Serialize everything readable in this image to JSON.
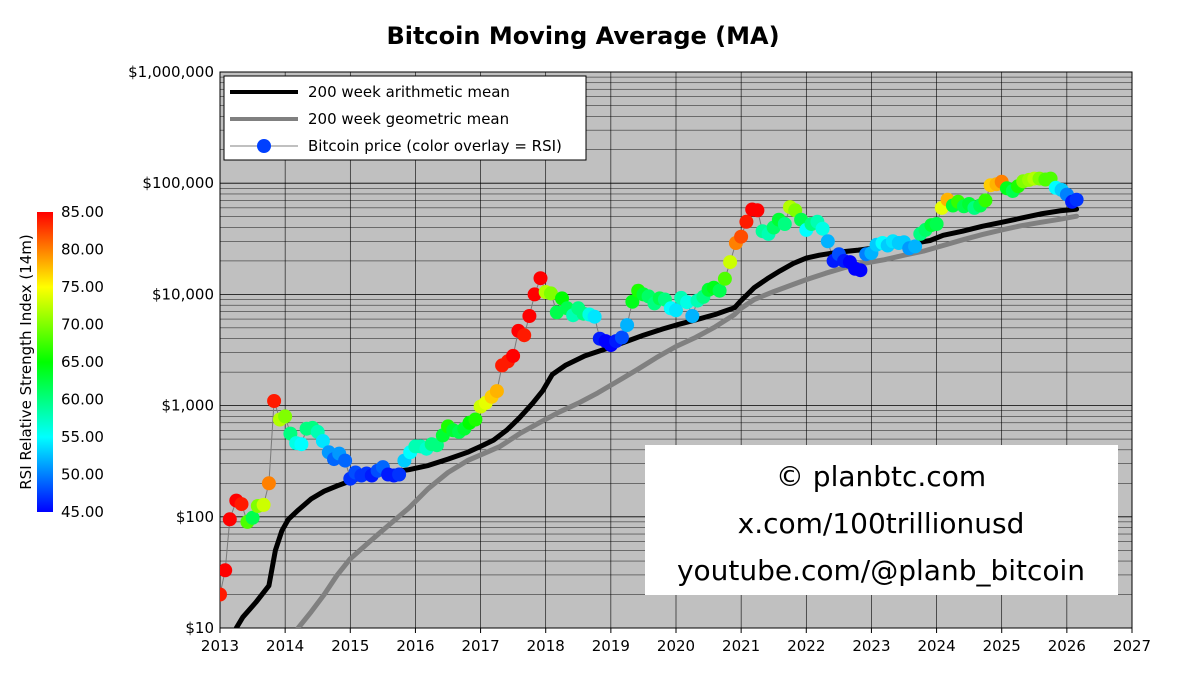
{
  "chart_data": {
    "type": "line",
    "title": "Bitcoin Moving Average (MA)",
    "xlabel": "",
    "ylabel": "",
    "y_scale": "log",
    "xlim": [
      2013,
      2027
    ],
    "ylim": [
      10,
      1000000
    ],
    "grid": true,
    "legend_position": "top-left",
    "x_ticks": [
      "2013",
      "2014",
      "2015",
      "2016",
      "2017",
      "2018",
      "2019",
      "2020",
      "2021",
      "2022",
      "2023",
      "2024",
      "2025",
      "2026",
      "2027"
    ],
    "y_ticks": [
      {
        "value": 10,
        "label": "$10"
      },
      {
        "value": 100,
        "label": "$100"
      },
      {
        "value": 1000,
        "label": "$1,000"
      },
      {
        "value": 10000,
        "label": "$10,000"
      },
      {
        "value": 100000,
        "label": "$100,000"
      },
      {
        "value": 1000000,
        "label": "$1,000,000"
      }
    ],
    "colors": {
      "plot_background": "#c0c0c0",
      "arith_line": "#000000",
      "geo_line": "#808080"
    },
    "series": [
      {
        "name": "200 week arithmetic mean",
        "x": [
          2013.25,
          2013.35,
          2013.55,
          2013.75,
          2013.85,
          2013.95,
          2014.05,
          2014.2,
          2014.4,
          2014.6,
          2014.8,
          2015.0,
          2015.3,
          2015.6,
          2015.9,
          2016.2,
          2016.5,
          2016.8,
          2017.0,
          2017.2,
          2017.4,
          2017.6,
          2017.8,
          2017.95,
          2018.1,
          2018.3,
          2018.6,
          2018.9,
          2019.2,
          2019.5,
          2019.8,
          2020.0,
          2020.3,
          2020.6,
          2020.9,
          2021.0,
          2021.2,
          2021.4,
          2021.6,
          2021.8,
          2022.0,
          2022.2,
          2022.5,
          2022.8,
          2023.0,
          2023.3,
          2023.6,
          2023.9,
          2024.1,
          2024.4,
          2024.7,
          2025.0,
          2025.3,
          2025.6,
          2025.9,
          2026.1,
          2026.15
        ],
        "y": [
          10,
          12.5,
          17,
          24,
          50,
          75,
          95,
          115,
          145,
          170,
          190,
          210,
          235,
          250,
          265,
          290,
          330,
          380,
          430,
          490,
          600,
          780,
          1050,
          1350,
          1900,
          2300,
          2800,
          3200,
          3700,
          4300,
          4900,
          5300,
          5900,
          6600,
          7600,
          8800,
          11500,
          13800,
          16300,
          19000,
          21200,
          22500,
          24000,
          25000,
          26000,
          27000,
          28500,
          30500,
          34000,
          37000,
          41000,
          44500,
          48500,
          53000,
          56500,
          58000,
          58500
        ],
        "color": "#000000"
      },
      {
        "name": "200 week geometric mean",
        "x": [
          2014.2,
          2014.4,
          2014.6,
          2014.8,
          2015.0,
          2015.3,
          2015.6,
          2015.9,
          2016.2,
          2016.5,
          2016.8,
          2017.0,
          2017.3,
          2017.6,
          2017.9,
          2018.2,
          2018.5,
          2018.8,
          2019.1,
          2019.4,
          2019.7,
          2020.0,
          2020.3,
          2020.6,
          2020.9,
          2021.0,
          2021.2,
          2021.5,
          2021.8,
          2022.0,
          2022.3,
          2022.6,
          2022.9,
          2023.2,
          2023.5,
          2023.8,
          2024.1,
          2024.4,
          2024.7,
          2025.0,
          2025.3,
          2025.6,
          2025.9,
          2026.15
        ],
        "y": [
          10,
          14,
          20,
          30,
          42,
          60,
          85,
          120,
          180,
          250,
          320,
          360,
          430,
          560,
          700,
          870,
          1050,
          1300,
          1650,
          2100,
          2700,
          3400,
          4100,
          5100,
          6600,
          7500,
          9000,
          10600,
          12300,
          13600,
          15500,
          17500,
          19100,
          20500,
          22500,
          24500,
          27500,
          31000,
          34500,
          38000,
          41500,
          44500,
          47500,
          50500
        ],
        "color": "#808080"
      },
      {
        "name": "Bitcoin price (color overlay = RSI)",
        "x": [
          2013.0,
          2013.08,
          2013.15,
          2013.25,
          2013.33,
          2013.42,
          2013.5,
          2013.58,
          2013.67,
          2013.75,
          2013.83,
          2013.92,
          2014.0,
          2014.08,
          2014.17,
          2014.25,
          2014.33,
          2014.42,
          2014.5,
          2014.58,
          2014.67,
          2014.75,
          2014.83,
          2014.92,
          2015.0,
          2015.08,
          2015.17,
          2015.25,
          2015.33,
          2015.42,
          2015.5,
          2015.58,
          2015.67,
          2015.75,
          2015.83,
          2015.92,
          2016.0,
          2016.08,
          2016.17,
          2016.25,
          2016.33,
          2016.42,
          2016.5,
          2016.58,
          2016.67,
          2016.75,
          2016.83,
          2016.92,
          2017.0,
          2017.08,
          2017.17,
          2017.25,
          2017.33,
          2017.42,
          2017.5,
          2017.58,
          2017.67,
          2017.75,
          2017.83,
          2017.92,
          2018.0,
          2018.08,
          2018.17,
          2018.25,
          2018.33,
          2018.42,
          2018.5,
          2018.58,
          2018.67,
          2018.75,
          2018.83,
          2018.92,
          2019.0,
          2019.08,
          2019.17,
          2019.25,
          2019.33,
          2019.42,
          2019.5,
          2019.58,
          2019.67,
          2019.75,
          2019.83,
          2019.92,
          2020.0,
          2020.08,
          2020.17,
          2020.25,
          2020.33,
          2020.42,
          2020.5,
          2020.58,
          2020.67,
          2020.75,
          2020.83,
          2020.92,
          2021.0,
          2021.08,
          2021.17,
          2021.25,
          2021.33,
          2021.42,
          2021.5,
          2021.58,
          2021.67,
          2021.75,
          2021.83,
          2021.92,
          2022.0,
          2022.08,
          2022.17,
          2022.25,
          2022.33,
          2022.42,
          2022.5,
          2022.58,
          2022.67,
          2022.75,
          2022.83,
          2022.92,
          2023.0,
          2023.08,
          2023.17,
          2023.25,
          2023.33,
          2023.42,
          2023.5,
          2023.58,
          2023.67,
          2023.75,
          2023.83,
          2023.92,
          2024.0,
          2024.08,
          2024.17,
          2024.25,
          2024.33,
          2024.42,
          2024.5,
          2024.58,
          2024.67,
          2024.75,
          2024.83,
          2024.92,
          2025.0,
          2025.08,
          2025.17,
          2025.25,
          2025.33,
          2025.42,
          2025.5,
          2025.58,
          2025.67,
          2025.75,
          2025.83,
          2025.92,
          2026.0,
          2026.08,
          2026.15
        ],
        "y": [
          20,
          33,
          95,
          140,
          130,
          90,
          98,
          125,
          128,
          200,
          1100,
          750,
          800,
          560,
          460,
          450,
          620,
          630,
          580,
          480,
          380,
          330,
          370,
          320,
          220,
          250,
          235,
          245,
          235,
          260,
          280,
          240,
          235,
          240,
          320,
          380,
          430,
          430,
          410,
          450,
          440,
          540,
          650,
          600,
          580,
          620,
          700,
          750,
          980,
          1060,
          1200,
          1350,
          2300,
          2500,
          2800,
          4700,
          4300,
          6400,
          10000,
          14000,
          10500,
          10200,
          6900,
          9200,
          7500,
          6500,
          7500,
          6700,
          6600,
          6300,
          4000,
          3800,
          3500,
          3800,
          4100,
          5300,
          8600,
          10800,
          10000,
          9600,
          8300,
          9200,
          9000,
          7500,
          7200,
          9300,
          8500,
          6400,
          8800,
          9500,
          11000,
          11500,
          10800,
          13800,
          19500,
          29000,
          33000,
          45000,
          58000,
          57000,
          37000,
          35000,
          40000,
          47000,
          43000,
          61000,
          57000,
          47000,
          38000,
          43000,
          45000,
          39000,
          30000,
          20000,
          23000,
          20000,
          19500,
          17000,
          16500,
          23000,
          23500,
          28000,
          29000,
          27500,
          30000,
          29000,
          29500,
          26000,
          27000,
          35000,
          38000,
          42000,
          43000,
          60000,
          71000,
          63000,
          68000,
          62000,
          65000,
          60000,
          63000,
          70000,
          96000,
          98000,
          103000,
          90000,
          85000,
          94000,
          104000,
          107000,
          110000,
          110000,
          108000,
          110000,
          91000,
          87000,
          79000,
          68000,
          71000
        ],
        "rsi": [
          84,
          85,
          86,
          85,
          84,
          68,
          62,
          70,
          73,
          80,
          84,
          72,
          70,
          60,
          56,
          55,
          60,
          60,
          58,
          54,
          51,
          49,
          51,
          49,
          47,
          48,
          47,
          47,
          46,
          48,
          49,
          46,
          46,
          47,
          53,
          55,
          58,
          58,
          57,
          60,
          60,
          63,
          66,
          63,
          62,
          63,
          65,
          66,
          73,
          74,
          77,
          78,
          84,
          84,
          85,
          85,
          84,
          85,
          85,
          85,
          72,
          70,
          62,
          65,
          62,
          58,
          60,
          60,
          56,
          54,
          46,
          45,
          45,
          46,
          48,
          52,
          64,
          66,
          63,
          61,
          60,
          62,
          60,
          55,
          54,
          58,
          56,
          52,
          58,
          60,
          63,
          64,
          62,
          68,
          73,
          80,
          82,
          84,
          85,
          85,
          59,
          58,
          61,
          63,
          60,
          72,
          70,
          62,
          55,
          60,
          58,
          56,
          52,
          46,
          48,
          46,
          45,
          45,
          44,
          50,
          52,
          53,
          55,
          53,
          54,
          53,
          53,
          51,
          52,
          60,
          61,
          63,
          62,
          74,
          78,
          63,
          67,
          62,
          63,
          60,
          62,
          67,
          77,
          78,
          80,
          64,
          62,
          66,
          70,
          71,
          72,
          70,
          68,
          68,
          55,
          53,
          50,
          46,
          47
        ]
      }
    ],
    "colorbar": {
      "label": "RSI Relative Strength Index (14m)",
      "min": 45,
      "max": 85,
      "ticks": [
        "85.00",
        "80.00",
        "75.00",
        "70.00",
        "65.00",
        "60.00",
        "55.00",
        "50.00",
        "45.00"
      ]
    }
  },
  "watermark": {
    "line1": "© planbtc.com",
    "line2": "x.com/100trillionusd",
    "line3": "youtube.com/@planb_bitcoin"
  }
}
